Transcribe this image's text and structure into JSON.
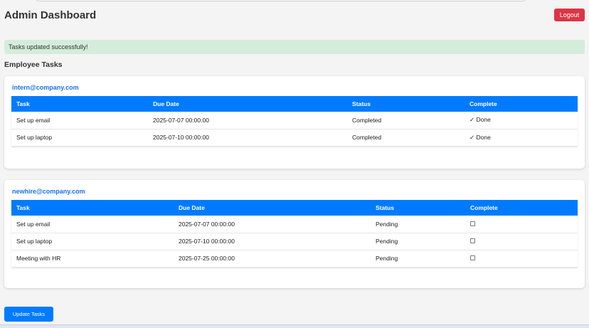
{
  "header": {
    "title": "Admin Dashboard",
    "logout_label": "Logout"
  },
  "alert": "Tasks updated successfully!",
  "section_title": "Employee Tasks",
  "columns": [
    "Task",
    "Due Date",
    "Status",
    "Complete"
  ],
  "employees": [
    {
      "email": "intern@company.com",
      "tasks": [
        {
          "task": "Set up email",
          "due": "2025-07-07 00:00:00",
          "status": "Completed",
          "complete": "✓ Done"
        },
        {
          "task": "Set up laptop",
          "due": "2025-07-10 00:00:00",
          "status": "Completed",
          "complete": "✓ Done"
        }
      ]
    },
    {
      "email": "newhire@company.com",
      "tasks": [
        {
          "task": "Set up email",
          "due": "2025-07-07 00:00:00",
          "status": "Pending",
          "complete": false
        },
        {
          "task": "Set up laptop",
          "due": "2025-07-10 00:00:00",
          "status": "Pending",
          "complete": false
        },
        {
          "task": "Meeting with HR",
          "due": "2025-07-25 00:00:00",
          "status": "Pending",
          "complete": false
        }
      ]
    }
  ],
  "update_label": "Update Tasks"
}
